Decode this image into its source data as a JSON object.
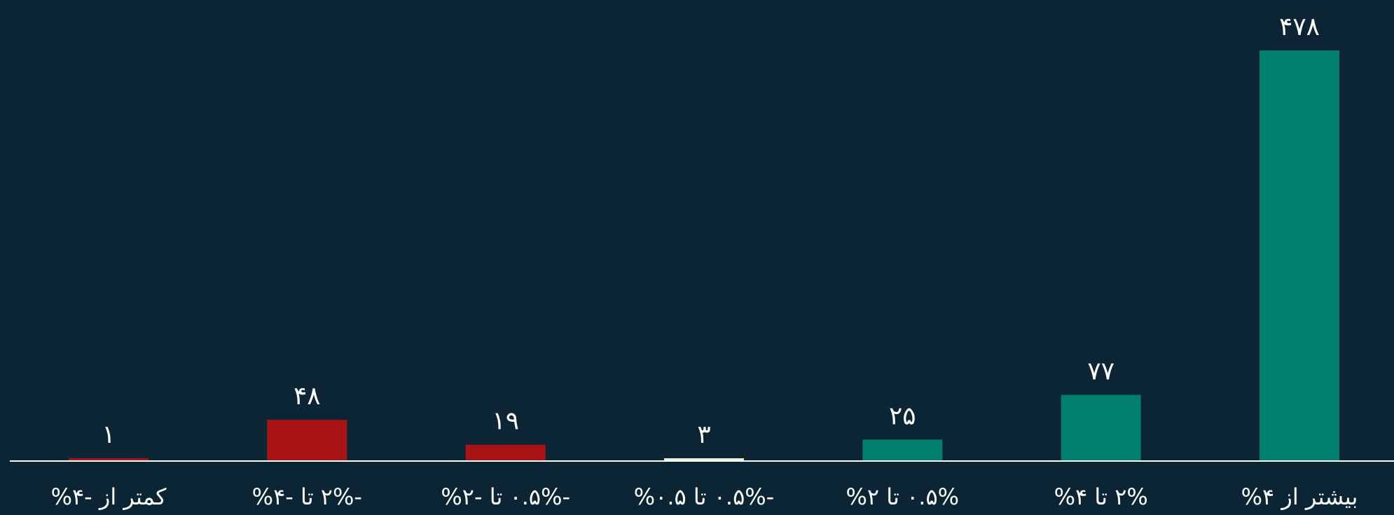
{
  "chart_data": {
    "type": "bar",
    "title": "",
    "xlabel": "",
    "ylabel": "",
    "grid": false,
    "legend": "none",
    "ylim": [
      0,
      478
    ],
    "categories": [
      "کمتر از -۴%",
      "-۲% تا -۴%",
      "-۰.۵% تا -۲%",
      "-۰.۵% تا ۰.۵%",
      "۰.۵% تا ۲%",
      "۲% تا ۴%",
      "بیشتر از ۴%"
    ],
    "values": [
      1,
      48,
      19,
      3,
      25,
      77,
      478
    ],
    "value_labels": [
      "۱",
      "۴۸",
      "۱۹",
      "۳",
      "۲۵",
      "۷۷",
      "۴۷۸"
    ],
    "bar_colors": [
      "#a81414",
      "#a81414",
      "#a81414",
      "#e6f2d3",
      "#007f6e",
      "#007f6e",
      "#007f6e"
    ]
  },
  "colors": {
    "background": "#0b2535",
    "axis": "#ffffff",
    "text": "#ffffff"
  }
}
